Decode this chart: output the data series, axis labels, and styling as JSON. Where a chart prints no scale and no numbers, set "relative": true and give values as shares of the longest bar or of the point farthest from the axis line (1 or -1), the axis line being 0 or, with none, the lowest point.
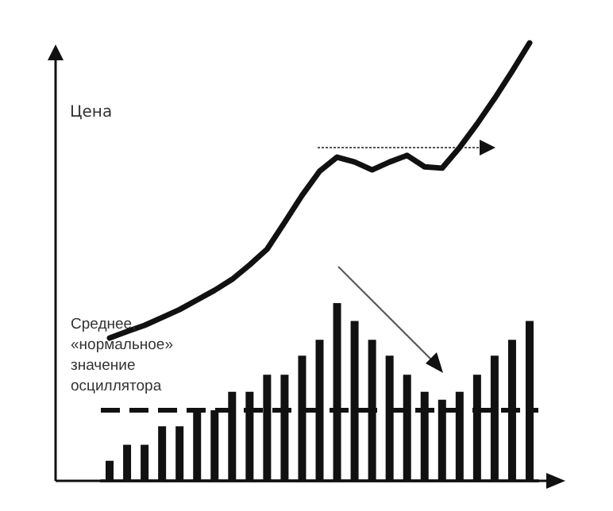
{
  "chart_data": [
    {
      "type": "line",
      "relative": true,
      "ylabel": "Цена",
      "marker": "none",
      "categories": [
        null,
        null,
        null,
        null,
        null,
        null,
        null,
        null,
        null,
        null,
        null,
        null,
        null,
        null,
        null,
        null,
        null,
        null,
        null,
        null,
        null,
        null,
        null,
        null,
        null
      ],
      "series": [
        {
          "color": "#111111",
          "values": [
            0.326,
            0.341,
            0.355,
            0.373,
            0.391,
            0.413,
            0.435,
            0.46,
            0.493,
            0.529,
            0.59,
            0.652,
            0.707,
            0.739,
            0.728,
            0.71,
            0.728,
            0.743,
            0.717,
            0.714,
            0.761,
            0.815,
            0.873,
            0.935,
            1.0
          ]
        }
      ]
    },
    {
      "type": "bar",
      "relative": true,
      "categories": [
        null,
        null,
        null,
        null,
        null,
        null,
        null,
        null,
        null,
        null,
        null,
        null,
        null,
        null,
        null,
        null,
        null,
        null,
        null,
        null,
        null,
        null,
        null,
        null,
        null
      ],
      "series": [
        {
          "color": "#111111",
          "values": [
            0.113,
            0.203,
            0.203,
            0.307,
            0.307,
            0.397,
            0.397,
            0.501,
            0.501,
            0.597,
            0.597,
            0.704,
            0.794,
            1,
            0.899,
            0.794,
            0.704,
            0.597,
            0.501,
            0.457,
            0.501,
            0.597,
            0.704,
            0.794,
            0.899
          ]
        }
      ],
      "ref_lines": [
        {
          "axis": "y",
          "value": 0.403,
          "label": "Среднее, «нормальное» значение осциллятора",
          "color": "#111111",
          "line_style": "dashed"
        }
      ]
    }
  ]
}
